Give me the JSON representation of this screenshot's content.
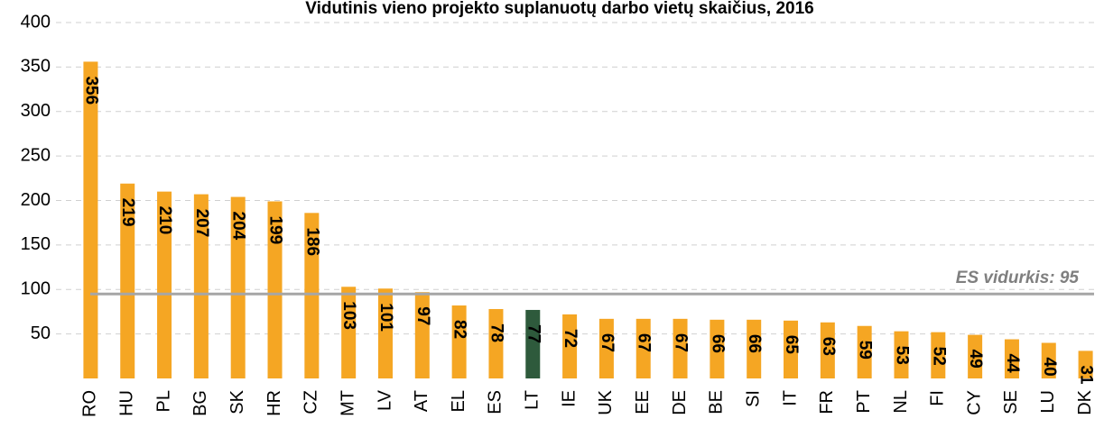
{
  "chart_data": {
    "type": "bar",
    "title": "Vidutinis vieno projekto suplanuotų darbo vietų skaičius, 2016",
    "categories": [
      "RO",
      "HU",
      "PL",
      "BG",
      "SK",
      "HR",
      "CZ",
      "MT",
      "LV",
      "AT",
      "EL",
      "ES",
      "LT",
      "IE",
      "UK",
      "EE",
      "DE",
      "BE",
      "SI",
      "IT",
      "FR",
      "PT",
      "NL",
      "FI",
      "CY",
      "SE",
      "LU",
      "DK"
    ],
    "values": [
      356,
      219,
      210,
      207,
      204,
      199,
      186,
      103,
      101,
      97,
      82,
      78,
      77,
      72,
      67,
      67,
      67,
      66,
      66,
      65,
      63,
      59,
      53,
      52,
      49,
      44,
      40,
      31
    ],
    "colors": [
      "#f5a623",
      "#f5a623",
      "#f5a623",
      "#f5a623",
      "#f5a623",
      "#f5a623",
      "#f5a623",
      "#f5a623",
      "#f5a623",
      "#f5a623",
      "#f5a623",
      "#f5a623",
      "#2e5a3c",
      "#f5a623",
      "#f5a623",
      "#f5a623",
      "#f5a623",
      "#f5a623",
      "#f5a623",
      "#f5a623",
      "#f5a623",
      "#f5a623",
      "#f5a623",
      "#f5a623",
      "#f5a623",
      "#f5a623",
      "#f5a623",
      "#f5a623"
    ],
    "reference": {
      "value": 95,
      "label": "ES vidurkis: 95",
      "color": "#a6a6a6"
    },
    "ylim": [
      0,
      400
    ],
    "yticks": [
      50,
      100,
      150,
      200,
      250,
      300,
      350,
      400
    ],
    "grid": true
  }
}
